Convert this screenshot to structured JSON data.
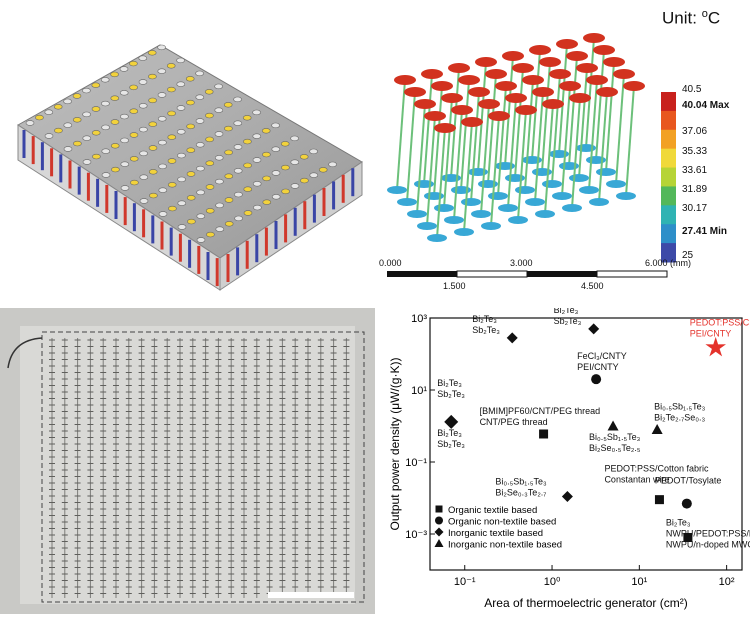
{
  "panel_b": {
    "unit_text": "Unit: ",
    "unit_symbol": "o",
    "unit_tail": "C",
    "colorbar": [
      "40.5",
      "40.04 Max",
      "37.06",
      "35.33",
      "33.61",
      "31.89",
      "30.17",
      "27.41 Min",
      "25"
    ],
    "colorbar_colors": [
      "#c8211d",
      "#e8571f",
      "#f2a124",
      "#f0d93a",
      "#b6d436",
      "#53b85a",
      "#2fb3b3",
      "#2e8fc9",
      "#3d4aa8"
    ],
    "scalebar": {
      "top_labels": [
        "0.000",
        "3.000",
        "6.000 (mm)"
      ],
      "bottom_labels": [
        "1.500",
        "4.500"
      ]
    }
  },
  "chart_data": {
    "type": "scatter",
    "xlabel": "Area of thermoelectric generator (cm²)",
    "ylabel": "Output power density (μW/(g·K))",
    "x_scale": "log",
    "y_scale": "log",
    "xlim": [
      0.04,
      150
    ],
    "ylim": [
      0.0001,
      1000
    ],
    "x_ticks": [
      "10⁻¹",
      "10⁰",
      "10¹",
      "10²"
    ],
    "y_ticks": [
      "10⁻³",
      "10⁻¹",
      "10¹",
      "10³"
    ],
    "legend": [
      "Organic textile based",
      "Organic non-textile based",
      "Inorganic textile based",
      "Inorganic non-textile based"
    ],
    "legend_position": "bottom-left",
    "points": [
      {
        "x": 0.35,
        "y": 280,
        "marker": "diamond",
        "labels": [
          "Bi₂Te₃",
          "Sb₂Te₃"
        ]
      },
      {
        "x": 3.0,
        "y": 500,
        "marker": "diamond",
        "labels": [
          "Bi₂Te₃",
          "Sb₂Te₃"
        ]
      },
      {
        "x": 3.2,
        "y": 20,
        "marker": "circle",
        "labels": [
          "FeCl₃/CNTY",
          "PEI/CNTY"
        ]
      },
      {
        "x": 0.07,
        "y": 1.3,
        "marker": "diamond",
        "labels": [
          "Bi₂Te₃",
          "Sb₂Te₃",
          "Bi₂Te₃",
          "Sb₂Te₃"
        ]
      },
      {
        "x": 0.8,
        "y": 0.6,
        "marker": "square",
        "labels": [
          "[BMIM]PF60/CNT/PEG thread",
          "CNT/PEG thread"
        ]
      },
      {
        "x": 5.0,
        "y": 1.0,
        "marker": "triangle",
        "labels": [
          "Bi₀.₅Sb₁.₅Te₃",
          "Bi₂Se₀.₅Te₂.₅"
        ]
      },
      {
        "x": 16,
        "y": 0.8,
        "marker": "triangle",
        "labels": [
          "Bi₀.₅Sb₁.₅Te₃",
          "Bi₂Te₂.₇Se₀.₃"
        ]
      },
      {
        "x": 1.5,
        "y": 0.011,
        "marker": "diamond",
        "labels": [
          "Bi₀.₅Sb₁.₅Te₃",
          "Bi₂Se₀.₃Te₂.₇"
        ]
      },
      {
        "x": 17,
        "y": 0.009,
        "marker": "square",
        "labels": [
          "PEDOT:PSS/Cotton fabric",
          "Constantan wire"
        ]
      },
      {
        "x": 35,
        "y": 0.007,
        "marker": "circle",
        "labels": [
          "PEDOT/Tosylate"
        ]
      },
      {
        "x": 36,
        "y": 0.0008,
        "marker": "square",
        "labels": [
          "Bi₂Te₃",
          "NWPU/PEDOT:PSS/MWCNT",
          "NWPU/n-doped MWCNT"
        ]
      },
      {
        "x": 75,
        "y": 150,
        "marker": "star",
        "color": "#e4322b",
        "labels": [
          "PEDOT:PSS/CNTY",
          "PEI/CNTY"
        ]
      }
    ]
  }
}
